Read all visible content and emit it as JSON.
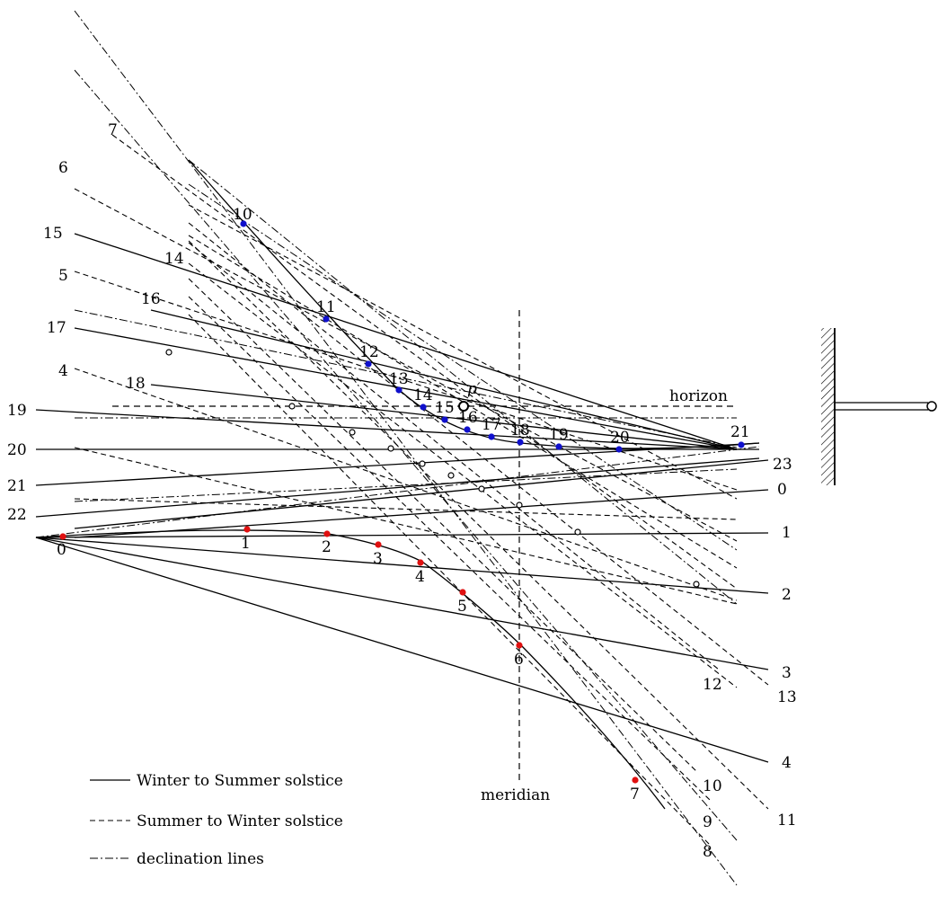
{
  "labels": {
    "horizon": "horizon",
    "meridian": "meridian",
    "p_prime": "p′"
  },
  "legend": {
    "solid": "Winter to Summer solstice",
    "dashed": "Summer to Winter solstice",
    "dashdot": "declination lines"
  },
  "solid_lines": [
    {
      "label": "15"
    },
    {
      "label": "16"
    },
    {
      "label": "17"
    },
    {
      "label": "18"
    },
    {
      "label": "19"
    },
    {
      "label": "20"
    },
    {
      "label": "21"
    },
    {
      "label": "22"
    },
    {
      "label": "23"
    },
    {
      "label": "0"
    },
    {
      "label": "1"
    },
    {
      "label": "2"
    },
    {
      "label": "3"
    },
    {
      "label": "4"
    }
  ],
  "dashed_lines": [
    {
      "label": "7"
    },
    {
      "label": "6"
    },
    {
      "label": "5"
    },
    {
      "label": "4"
    },
    {
      "label": "14"
    },
    {
      "label": "13"
    },
    {
      "label": "12"
    },
    {
      "label": "11"
    },
    {
      "label": "10"
    },
    {
      "label": "9"
    },
    {
      "label": "8"
    }
  ],
  "upper_points": [
    "10",
    "11",
    "12",
    "13",
    "14",
    "15",
    "16",
    "17",
    "18",
    "19",
    "20",
    "21"
  ],
  "lower_points": [
    "0",
    "1",
    "2",
    "3",
    "4",
    "5",
    "6",
    "7"
  ],
  "colors": {
    "upper_points": "#1010cc",
    "lower_points": "#e01010",
    "lines": "#000000"
  }
}
